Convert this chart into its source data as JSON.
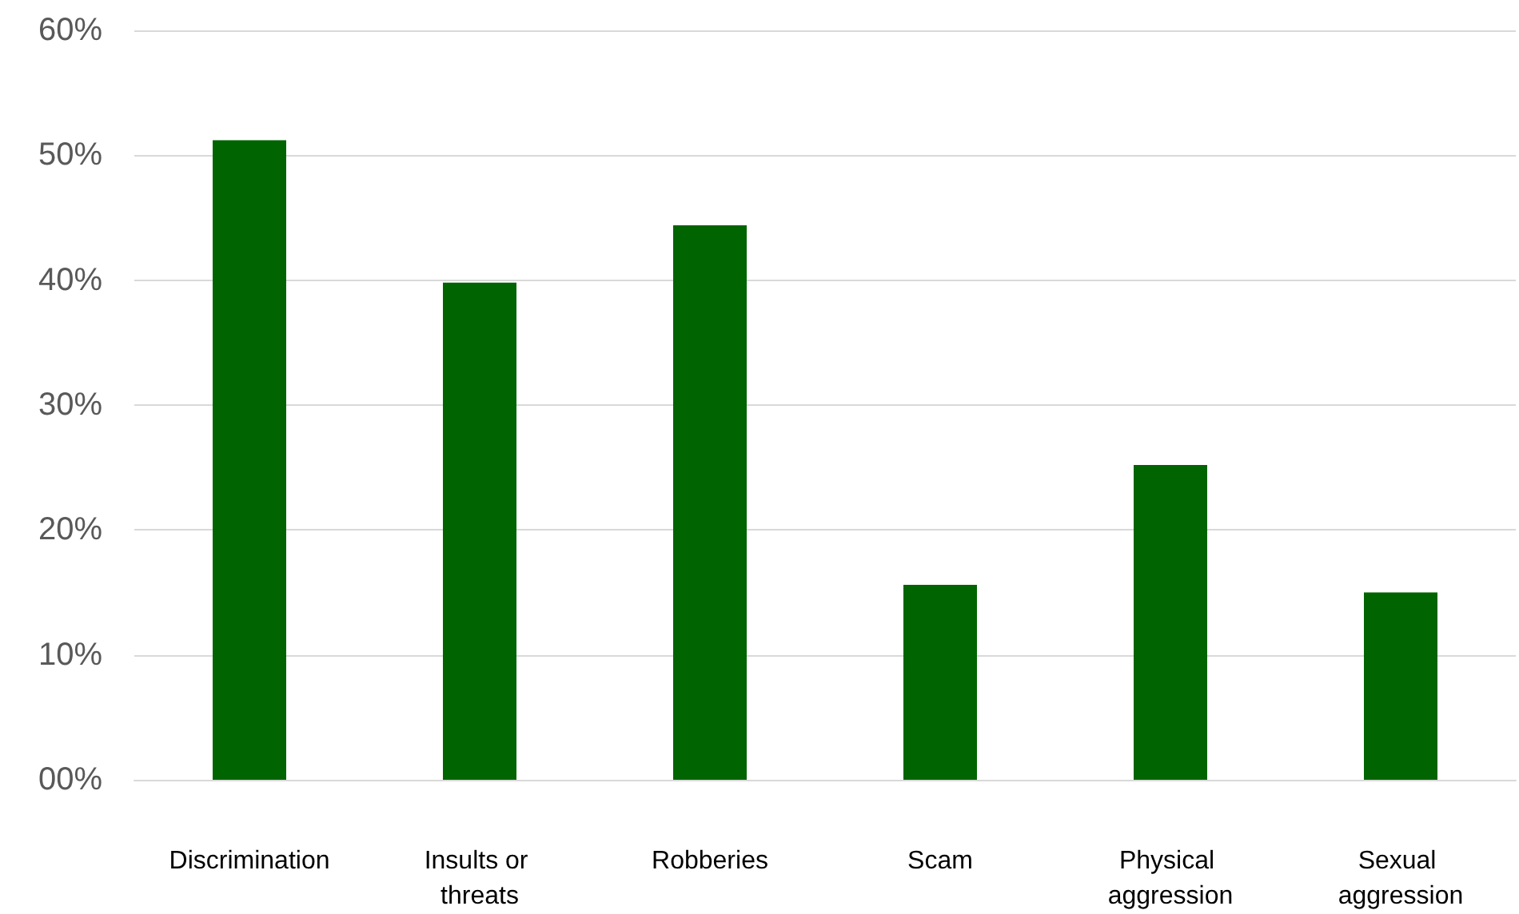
{
  "chart_data": {
    "type": "bar",
    "categories": [
      "Discrimination",
      "Insults or threats",
      "Robberies",
      "Scam",
      "Physical aggression",
      "Sexual aggression"
    ],
    "values": [
      51.2,
      39.8,
      44.4,
      15.6,
      25.2,
      15.0
    ],
    "color": "#006400",
    "ylim": [
      0,
      60
    ],
    "yticks": [
      {
        "value": 0,
        "label": "00%"
      },
      {
        "value": 10,
        "label": "10%"
      },
      {
        "value": 20,
        "label": "20%"
      },
      {
        "value": 30,
        "label": "30%"
      },
      {
        "value": 40,
        "label": "40%"
      },
      {
        "value": 50,
        "label": "50%"
      },
      {
        "value": 60,
        "label": "60%"
      }
    ],
    "grid": "y"
  }
}
